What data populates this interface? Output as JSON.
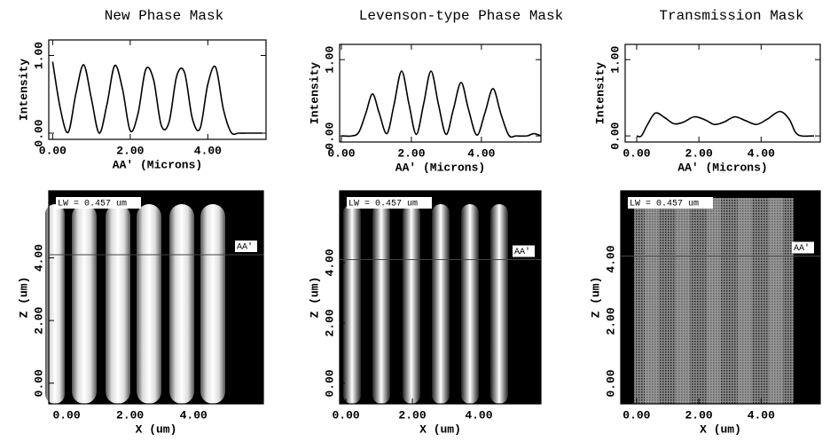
{
  "chart_data": [
    {
      "type": "line",
      "title": "New Phase Mask",
      "x_label": "AA' (Microns)",
      "y_label": "Intensity",
      "x": [
        0,
        0.2,
        0.4,
        0.6,
        0.8,
        1.0,
        1.2,
        1.4,
        1.6,
        1.8,
        2.0,
        2.2,
        2.4,
        2.6,
        2.8,
        3.0,
        3.2,
        3.4,
        3.6,
        3.8,
        4.0,
        4.2,
        4.4,
        4.6,
        4.8,
        5.0,
        5.2,
        5.4
      ],
      "values": [
        0.92,
        0.31,
        0.01,
        0.51,
        0.88,
        0.44,
        0,
        0.37,
        0.87,
        0.57,
        0.03,
        0.25,
        0.82,
        0.69,
        0.1,
        0.14,
        0.74,
        0.78,
        0.19,
        0.06,
        0.63,
        0.85,
        0.31,
        0.01,
        0,
        0,
        0,
        0
      ],
      "color": "#000000",
      "xlim": [
        -0.1,
        5.5
      ],
      "ylim": [
        -0.08,
        1.2
      ],
      "xticks": [
        {
          "value": 0,
          "label": "0.00"
        },
        {
          "value": 2,
          "label": "2.00"
        },
        {
          "value": 4,
          "label": "4.00"
        }
      ],
      "yticks": [
        {
          "value": 0,
          "label": "0.00"
        },
        {
          "value": 1,
          "label": "1.00"
        }
      ]
    },
    {
      "type": "line",
      "title": "Levenson-type Phase Mask",
      "x_label": "AA' (Microns)",
      "y_label": "Intensity",
      "x": [
        0,
        0.3,
        0.5,
        0.7,
        0.89,
        1.08,
        1.3,
        1.5,
        1.72,
        1.93,
        2.14,
        2.35,
        2.56,
        2.77,
        2.99,
        3.2,
        3.42,
        3.63,
        3.87,
        4.1,
        4.33,
        4.55,
        4.78,
        5.0,
        5.3,
        5.5,
        5.7
      ],
      "values": [
        0,
        0,
        0.05,
        0.3,
        0.55,
        0.3,
        0.03,
        0.4,
        0.85,
        0.42,
        0.02,
        0.42,
        0.85,
        0.42,
        0.02,
        0.35,
        0.7,
        0.35,
        0.01,
        0.3,
        0.62,
        0.3,
        0.01,
        0,
        0,
        0.03,
        0
      ],
      "color": "#000000",
      "xlim": [
        -0.05,
        5.7
      ],
      "ylim": [
        -0.08,
        1.2
      ],
      "xticks": [
        {
          "value": 0,
          "label": "0.00"
        },
        {
          "value": 2,
          "label": "2.00"
        },
        {
          "value": 4,
          "label": "4.00"
        }
      ],
      "yticks": [
        {
          "value": 0,
          "label": "0.00"
        },
        {
          "value": 1,
          "label": "1.00"
        }
      ]
    },
    {
      "type": "line",
      "title": "Transmission Mask",
      "x_label": "AA' (Microns)",
      "y_label": "Intensity",
      "x": [
        0,
        0.15,
        0.35,
        0.6,
        0.9,
        1.2,
        1.5,
        1.85,
        2.2,
        2.5,
        2.8,
        3.15,
        3.5,
        3.85,
        4.2,
        4.6,
        4.9,
        5.1,
        5.3,
        5.7
      ],
      "values": [
        0,
        0,
        0.15,
        0.3,
        0.24,
        0.16,
        0.18,
        0.25,
        0.21,
        0.15,
        0.18,
        0.25,
        0.2,
        0.15,
        0.22,
        0.32,
        0.22,
        0.05,
        0,
        0
      ],
      "color": "#000000",
      "xlim": [
        -0.37,
        5.9
      ],
      "ylim": [
        -0.08,
        1.2
      ],
      "xticks": [
        {
          "value": 0,
          "label": "0.00"
        },
        {
          "value": 2,
          "label": "2.00"
        },
        {
          "value": 4,
          "label": "4.00"
        }
      ],
      "yticks": [
        {
          "value": 0,
          "label": "0.00"
        },
        {
          "value": 1,
          "label": "1.00"
        }
      ]
    },
    {
      "type": "image",
      "x_label": "X (um)",
      "y_label": "Z (um)",
      "annotation": "LW = 0.457 um",
      "cutline_label": "AA'",
      "cutline_z": 4.1,
      "xlim": [
        -0.56,
        6.2
      ],
      "ylim": [
        -0.66,
        6.14
      ],
      "xticks": [
        {
          "value": 0,
          "label": "0.00"
        },
        {
          "value": 2,
          "label": "2.00"
        },
        {
          "value": 4,
          "label": "4.00"
        }
      ],
      "yticks": [
        {
          "value": 0,
          "label": "0.00"
        },
        {
          "value": 2,
          "label": "2.00"
        },
        {
          "value": 4,
          "label": "4.00"
        }
      ]
    },
    {
      "type": "image",
      "x_label": "X (um)",
      "y_label": "Z (um)",
      "annotation": "LW = 0.457 um",
      "cutline_label": "AA'",
      "cutline_z": 4.1,
      "xlim": [
        -0.19,
        5.87
      ],
      "ylim": [
        -0.68,
        6.38
      ],
      "xticks": [
        {
          "value": 0,
          "label": "0.00"
        },
        {
          "value": 2,
          "label": "2.00"
        },
        {
          "value": 4,
          "label": "4.00"
        }
      ],
      "yticks": [
        {
          "value": 0,
          "label": "0.00"
        },
        {
          "value": 2,
          "label": "2.00"
        },
        {
          "value": 4,
          "label": "4.00"
        }
      ]
    },
    {
      "type": "image",
      "x_label": "X (um)",
      "y_label": "Z (um)",
      "annotation": "LW = 0.457 um",
      "cutline_label": "AA'",
      "cutline_z": 4.1,
      "xlim": [
        -0.51,
        5.9
      ],
      "ylim": [
        -0.66,
        6.2
      ],
      "xticks": [
        {
          "value": 0,
          "label": "0.00"
        },
        {
          "value": 2,
          "label": "2.00"
        },
        {
          "value": 4,
          "label": "4.00"
        }
      ],
      "yticks": [
        {
          "value": 0,
          "label": "0.00"
        },
        {
          "value": 2,
          "label": "2.00"
        },
        {
          "value": 4,
          "label": "4.00"
        }
      ]
    }
  ]
}
